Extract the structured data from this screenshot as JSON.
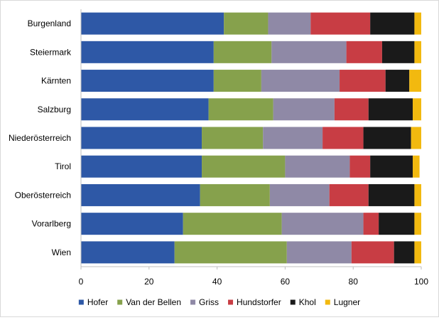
{
  "chart_data": {
    "type": "bar",
    "orientation": "horizontal",
    "stacked": true,
    "categories": [
      "Burgenland",
      "Steiermark",
      "Kärnten",
      "Salzburg",
      "Niederösterreich",
      "Tirol",
      "Oberösterreich",
      "Vorarlberg",
      "Wien"
    ],
    "series": [
      {
        "name": "Hofer",
        "color": "#2e58a6",
        "values": [
          42.0,
          39.0,
          39.0,
          37.5,
          35.5,
          35.5,
          35.0,
          30.0,
          27.5
        ]
      },
      {
        "name": "Van der Bellen",
        "color": "#86a14c",
        "values": [
          13.0,
          17.0,
          14.0,
          19.0,
          18.0,
          24.5,
          20.5,
          29.0,
          33.0
        ]
      },
      {
        "name": "Griss",
        "color": "#8f89a6",
        "values": [
          12.5,
          22.0,
          23.0,
          18.0,
          17.5,
          19.0,
          17.5,
          24.0,
          19.0
        ]
      },
      {
        "name": "Hundstorfer",
        "color": "#c83d44",
        "values": [
          17.5,
          10.5,
          13.5,
          10.0,
          12.0,
          6.0,
          11.5,
          4.5,
          12.5
        ]
      },
      {
        "name": "Khol",
        "color": "#1a1a1a",
        "values": [
          13.0,
          9.5,
          7.0,
          13.0,
          14.0,
          12.5,
          13.5,
          10.5,
          6.0
        ]
      },
      {
        "name": "Lugner",
        "color": "#f2b90f",
        "values": [
          2.0,
          2.0,
          3.5,
          2.5,
          3.0,
          2.0,
          2.0,
          2.0,
          2.0
        ]
      }
    ],
    "xlim": [
      0,
      100
    ],
    "xticks": [
      0,
      20,
      40,
      60,
      80,
      100
    ],
    "grid": false,
    "legend_position": "bottom"
  }
}
